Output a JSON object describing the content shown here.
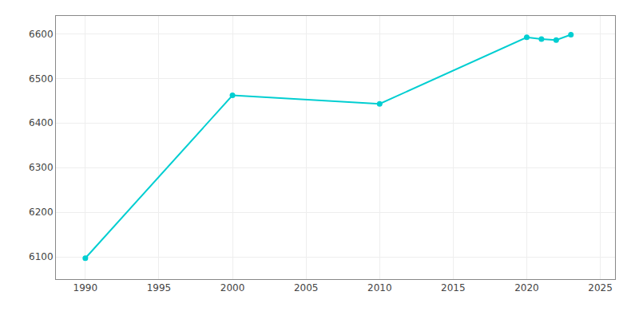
{
  "chart_data": {
    "type": "line",
    "x": [
      1990,
      2000,
      2010,
      2020,
      2021,
      2022,
      2023
    ],
    "values": [
      6097,
      6462,
      6443,
      6592,
      6588,
      6586,
      6598
    ],
    "color": "#00CED1",
    "marker": "circle",
    "xlim": [
      1988,
      2026
    ],
    "ylim": [
      6050,
      6640
    ],
    "xticks": [
      1990,
      1995,
      2000,
      2005,
      2010,
      2015,
      2020,
      2025
    ],
    "yticks": [
      6100,
      6200,
      6300,
      6400,
      6500,
      6600
    ],
    "grid": true
  }
}
